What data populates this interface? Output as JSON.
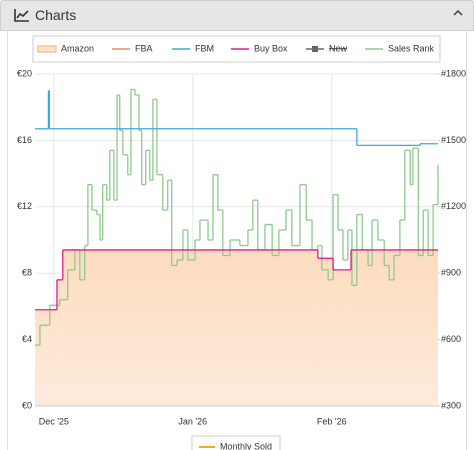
{
  "panel": {
    "title": "Charts"
  },
  "chart_data": {
    "type": "step",
    "xlim": [
      -4.2,
      85.7
    ],
    "xticks": [
      {
        "value": 0,
        "label": "Dec '25"
      },
      {
        "value": 31,
        "label": "Jan '26"
      },
      {
        "value": 62,
        "label": "Feb '26"
      }
    ],
    "ylim": [
      0,
      20
    ],
    "yticks": [
      {
        "value": 0,
        "label": "€0"
      },
      {
        "value": 4,
        "label": "€4"
      },
      {
        "value": 8,
        "label": "€8"
      },
      {
        "value": 12,
        "label": "€12"
      },
      {
        "value": 16,
        "label": "€16"
      },
      {
        "value": 20,
        "label": "€20"
      }
    ],
    "y2lim": [
      300,
      1800
    ],
    "y2ticks": [
      {
        "value": 300,
        "label": "#300"
      },
      {
        "value": 600,
        "label": "#600"
      },
      {
        "value": 900,
        "label": "#900"
      },
      {
        "value": 1200,
        "label": "#1200"
      },
      {
        "value": 1500,
        "label": "#1500"
      },
      {
        "value": 1800,
        "label": "#1800"
      }
    ],
    "grid": true,
    "series": [
      {
        "name": "Amazon",
        "color": "#f5b26b",
        "area": true,
        "x": [
          -4.2,
          0.7,
          2.0,
          58.9,
          62.3,
          66.3
        ],
        "values": [
          5.8,
          7.6,
          9.4,
          8.9,
          8.2,
          9.4
        ]
      },
      {
        "name": "FBA",
        "color": "#f4845f",
        "x": [],
        "values": []
      },
      {
        "name": "FBM",
        "color": "#39a9e0",
        "x": [
          -4.2,
          -1.2,
          -1.0,
          67.6,
          81.7
        ],
        "values": [
          16.7,
          19.0,
          16.7,
          15.7,
          15.8
        ]
      },
      {
        "name": "Buy Box",
        "color": "#e5198c",
        "x": [
          -4.2,
          0.7,
          2.0,
          58.9,
          62.3,
          66.3
        ],
        "values": [
          5.8,
          7.6,
          9.4,
          8.9,
          8.2,
          9.4
        ]
      },
      {
        "name": "New",
        "color": "#666666",
        "hidden": true,
        "x": [],
        "values": []
      },
      {
        "name": "Sales Rank",
        "color": "#8fc98f",
        "axis": "y2",
        "x": [
          -4.2,
          -3.1,
          -0.9,
          1.3,
          3.1,
          4.7,
          5.8,
          6.9,
          7.6,
          8.5,
          9.6,
          10.3,
          10.9,
          11.8,
          12.5,
          13.4,
          14.1,
          14.7,
          15.4,
          16.5,
          17.2,
          18.1,
          19.0,
          19.6,
          20.5,
          21.4,
          22.1,
          23.0,
          24.3,
          25.4,
          26.3,
          27.5,
          28.8,
          29.9,
          31.5,
          32.6,
          34.4,
          35.5,
          36.6,
          37.7,
          39.3,
          41.5,
          43.3,
          44.4,
          45.5,
          47.1,
          48.7,
          50.2,
          51.8,
          53.1,
          54.9,
          56.3,
          57.6,
          58.9,
          59.8,
          61.2,
          62.3,
          63.4,
          64.5,
          65.6,
          66.5,
          67.6,
          68.8,
          70.1,
          71.0,
          72.3,
          73.7,
          74.8,
          75.9,
          77.2,
          78.3,
          79.5,
          80.1,
          81.3,
          82.4,
          83.5,
          84.6,
          85.7
        ],
        "values": [
          575,
          665,
          755,
          780,
          915,
          1005,
          870,
          1025,
          1300,
          1185,
          1165,
          1050,
          1300,
          1230,
          1455,
          1230,
          1705,
          1545,
          1435,
          1345,
          1730,
          1705,
          1545,
          1300,
          1455,
          1320,
          1685,
          1345,
          1185,
          1320,
          935,
          960,
          1095,
          960,
          1050,
          1140,
          1050,
          1345,
          1185,
          980,
          1050,
          1025,
          1095,
          1230,
          1005,
          1120,
          980,
          1095,
          1185,
          1025,
          1300,
          1140,
          1005,
          1025,
          915,
          870,
          1255,
          1095,
          960,
          1095,
          845,
          1165,
          1005,
          935,
          1140,
          1050,
          935,
          870,
          980,
          1140,
          1455,
          1300,
          1465,
          980,
          1185,
          980,
          1210,
          1390
        ]
      }
    ],
    "extra_legend": {
      "name": "Monthly Sold",
      "color": "#f5a623"
    }
  }
}
